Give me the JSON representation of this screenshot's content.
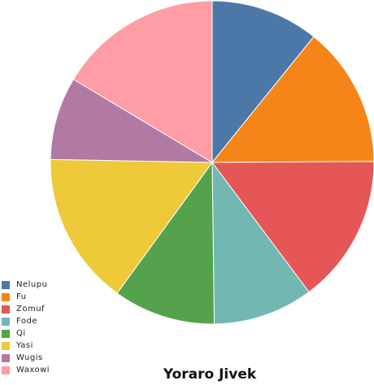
{
  "chart_data": {
    "type": "pie",
    "title": "Yoraro Jivek",
    "categories": [
      "Nelupu",
      "Fu",
      "Zomuf",
      "Fode",
      "Qi",
      "Yasi",
      "Wugis",
      "Waxowi"
    ],
    "values": [
      10.8,
      14.1,
      14.9,
      10.0,
      10.2,
      15.3,
      8.3,
      16.4
    ],
    "colors": [
      "#4c78a8",
      "#f58518",
      "#e45756",
      "#72b7b2",
      "#54a24b",
      "#eeca3b",
      "#b279a2",
      "#ff9da6"
    ],
    "legend_position": "left-bottom",
    "start_angle": "top",
    "direction": "clockwise"
  }
}
